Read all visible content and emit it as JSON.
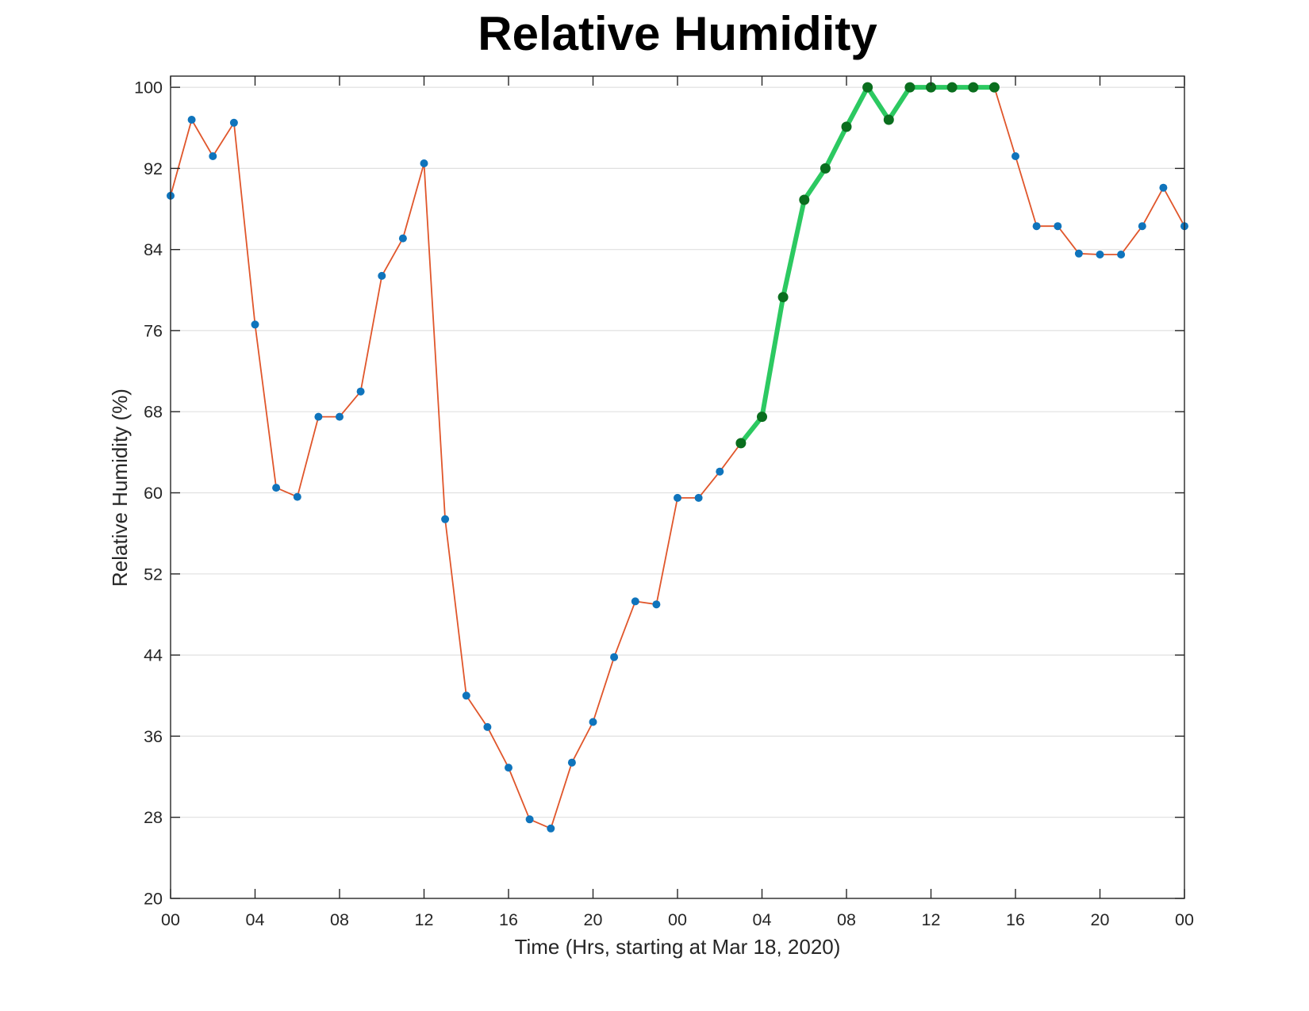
{
  "chart_data": {
    "type": "line",
    "title": "Relative Humidity",
    "xlabel": "Time (Hrs, starting at Mar 18, 2020)",
    "ylabel": "Relative Humidity (%)",
    "x_unit": "hours",
    "x": [
      0,
      1,
      2,
      3,
      4,
      5,
      6,
      7,
      8,
      9,
      10,
      11,
      12,
      13,
      14,
      15,
      16,
      17,
      18,
      19,
      20,
      21,
      22,
      23,
      24,
      25,
      26,
      27,
      28,
      29,
      30,
      31,
      32,
      33,
      34,
      35,
      36,
      37,
      38,
      39,
      40,
      41,
      42,
      43,
      44,
      45,
      46,
      47,
      48
    ],
    "series": [
      {
        "name": "relative_humidity",
        "values": [
          89.3,
          96.8,
          93.2,
          96.5,
          76.6,
          60.5,
          59.6,
          67.5,
          67.5,
          70,
          81.4,
          85.1,
          92.5,
          57.4,
          40,
          36.9,
          32.9,
          27.8,
          26.9,
          33.4,
          37.4,
          43.8,
          49.3,
          49,
          59.5,
          59.5,
          62.1,
          64.9,
          67.5,
          79.3,
          88.9,
          92,
          96.1,
          100,
          96.8,
          100,
          100,
          100,
          100,
          100,
          93.2,
          86.3,
          86.3,
          83.6,
          83.5,
          83.5,
          86.3,
          90.1,
          86.3
        ],
        "line_color": "#E0562B",
        "marker_color": "#0F74BC"
      },
      {
        "name": "highlighted_rise_segment",
        "x_start": 27,
        "x_end": 39,
        "line_color": "#2CC961",
        "marker_color": "#0A6E1E"
      }
    ],
    "xticks": {
      "positions": [
        0,
        4,
        8,
        12,
        16,
        20,
        24,
        28,
        32,
        36,
        40,
        44,
        48
      ],
      "labels": [
        "00",
        "04",
        "08",
        "12",
        "16",
        "20",
        "00",
        "04",
        "08",
        "12",
        "16",
        "20",
        "00"
      ]
    },
    "yticks": {
      "positions": [
        20,
        28,
        36,
        44,
        52,
        60,
        68,
        76,
        84,
        92,
        100
      ],
      "labels": [
        "20",
        "28",
        "36",
        "44",
        "52",
        "60",
        "68",
        "76",
        "84",
        "92",
        "100"
      ]
    },
    "xlim": [
      0,
      48
    ],
    "ylim": [
      20,
      101.1
    ],
    "grid": "horizontal-only",
    "legend": "none",
    "axis_color": "#262626",
    "grid_color": "#E0E0E0",
    "title_color": "#000000"
  }
}
